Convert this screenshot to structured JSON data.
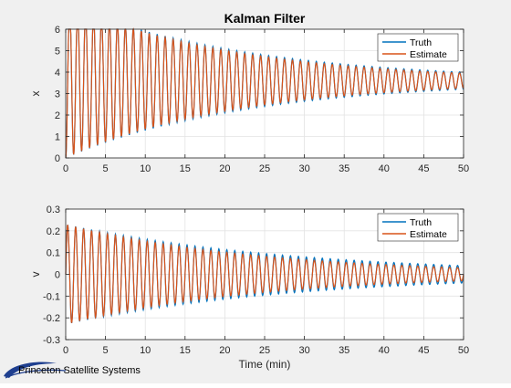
{
  "figure": {
    "logo_text": "Princeton Satellite Systems"
  },
  "chart_data": [
    {
      "type": "line",
      "title": "Kalman Filter",
      "xlabel": "",
      "ylabel": "x",
      "xlim": [
        0,
        50
      ],
      "ylim": [
        0,
        6
      ],
      "xticks": [
        "0",
        "5",
        "10",
        "15",
        "20",
        "25",
        "30",
        "35",
        "40",
        "45",
        "50"
      ],
      "yticks": [
        "0",
        "1",
        "2",
        "3",
        "4",
        "5",
        "6"
      ],
      "grid": true,
      "legend": {
        "location": "top-right",
        "entries": [
          "Truth",
          "Estimate"
        ]
      },
      "series": [
        {
          "name": "Truth",
          "color": "#0072bd",
          "model": {
            "kind": "damped_oscillation",
            "mean": 3.6,
            "initial_amplitude": 3.6,
            "final_amplitude": 0.4,
            "cycles": 50,
            "start_value": 0
          }
        },
        {
          "name": "Estimate",
          "color": "#d95319",
          "model": {
            "kind": "damped_oscillation",
            "mean": 3.6,
            "initial_amplitude": 3.6,
            "final_amplitude": 0.35,
            "cycles": 50,
            "start_value": 0
          }
        }
      ]
    },
    {
      "type": "line",
      "title": "",
      "xlabel": "Time (min)",
      "ylabel": "v",
      "xlim": [
        0,
        50
      ],
      "ylim": [
        -0.3,
        0.3
      ],
      "xticks": [
        "0",
        "5",
        "10",
        "15",
        "20",
        "25",
        "30",
        "35",
        "40",
        "45",
        "50"
      ],
      "yticks": [
        "-0.3",
        "-0.2",
        "-0.1",
        "0",
        "0.1",
        "0.2",
        "0.3"
      ],
      "grid": true,
      "legend": {
        "location": "top-right",
        "entries": [
          "Truth",
          "Estimate"
        ]
      },
      "series": [
        {
          "name": "Truth",
          "color": "#0072bd",
          "model": {
            "kind": "damped_oscillation",
            "mean": 0,
            "initial_amplitude": 0.23,
            "final_amplitude": 0.04,
            "cycles": 50,
            "start_value": 0
          }
        },
        {
          "name": "Estimate",
          "color": "#d95319",
          "model": {
            "kind": "damped_oscillation",
            "mean": 0,
            "initial_amplitude": 0.23,
            "final_amplitude": 0.03,
            "cycles": 50,
            "start_value": 0
          }
        }
      ]
    }
  ]
}
